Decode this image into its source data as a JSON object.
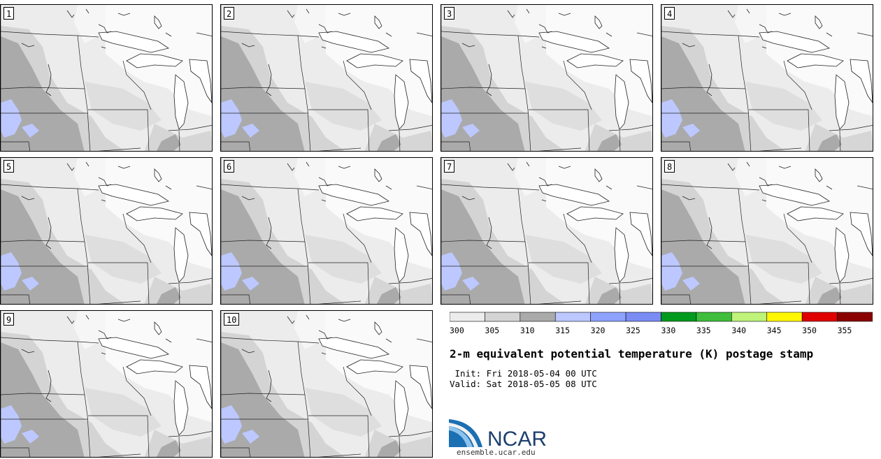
{
  "panels": [
    {
      "number": "1"
    },
    {
      "number": "2"
    },
    {
      "number": "3"
    },
    {
      "number": "4"
    },
    {
      "number": "5"
    },
    {
      "number": "6"
    },
    {
      "number": "7"
    },
    {
      "number": "8"
    },
    {
      "number": "9"
    },
    {
      "number": "10"
    }
  ],
  "colorbar": {
    "ticks": [
      "300",
      "305",
      "310",
      "315",
      "320",
      "325",
      "330",
      "335",
      "340",
      "345",
      "350",
      "355"
    ],
    "colors": [
      "#ececec",
      "#d4d4d4",
      "#aaaaaa",
      "#bcc8ff",
      "#8ea2ff",
      "#7a8cf4",
      "#009a1e",
      "#3fbd3c",
      "#bff37a",
      "#fff700",
      "#e00000",
      "#8a0000"
    ]
  },
  "title": "2-m equivalent potential temperature (K) postage stamp",
  "init": " Init: Fri 2018-05-04 00 UTC",
  "valid": "Valid: Sat 2018-05-05 08 UTC",
  "logo_text": "NCAR",
  "url": "ensemble.ucar.edu"
}
